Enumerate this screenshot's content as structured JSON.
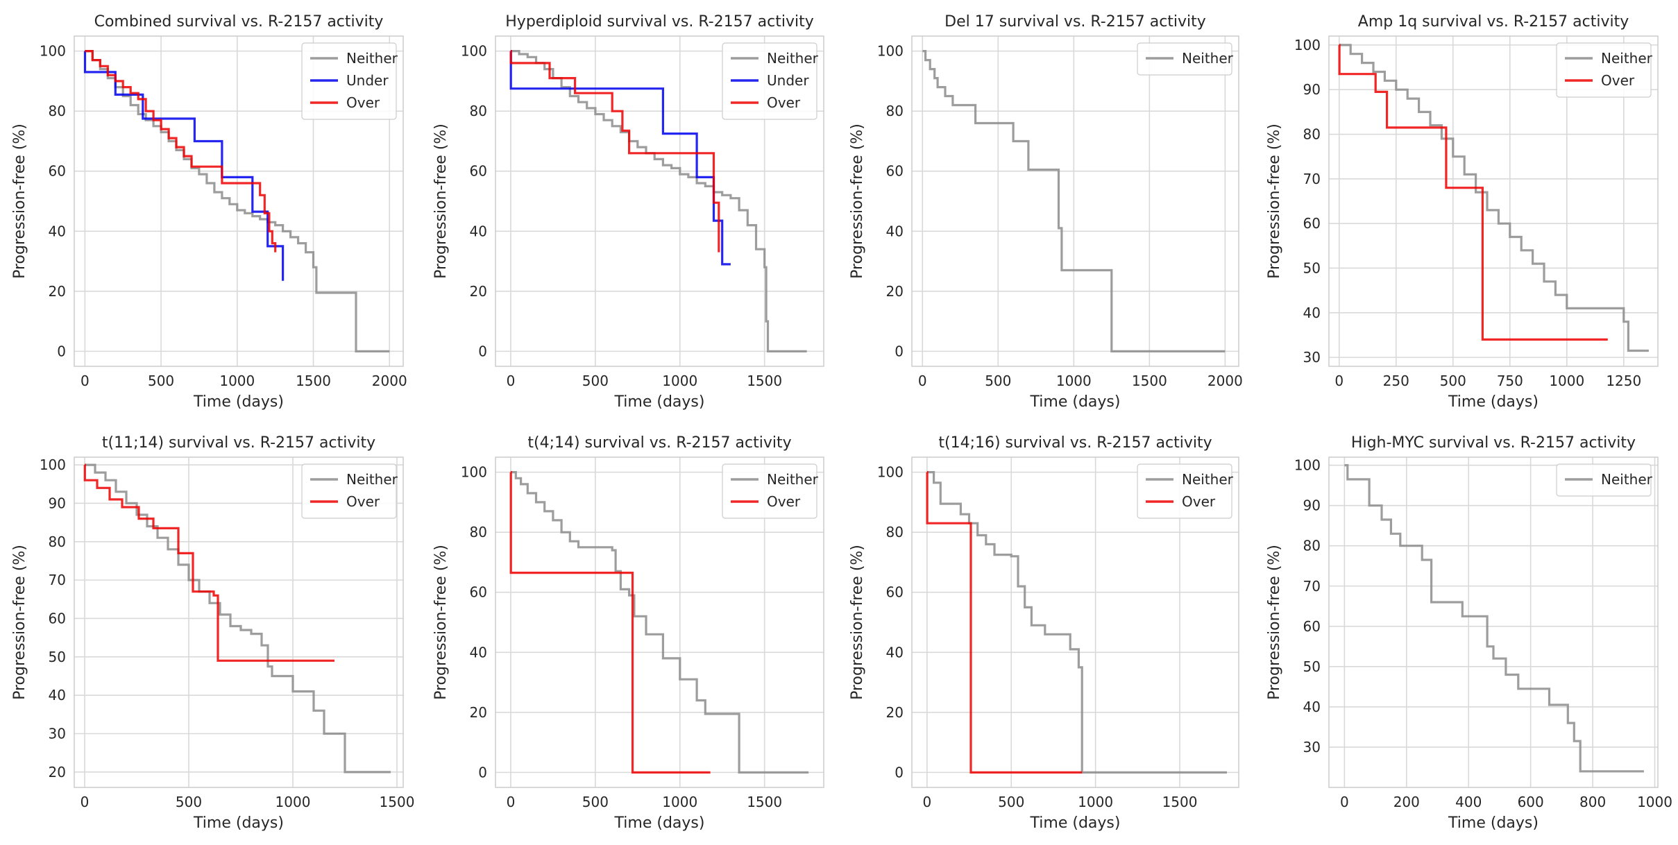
{
  "colors": {
    "Neither": "#8c8c8c",
    "Under": "#0000ee",
    "Over": "#ee0000"
  },
  "chart_data": [
    {
      "type": "line",
      "title": "Combined survival vs. R-2157 activity",
      "xlabel": "Time (days)",
      "ylabel": "Progression-free (%)",
      "xlim": [
        -70,
        2090
      ],
      "ylim": [
        -5,
        105
      ],
      "xticks": [
        0,
        500,
        1000,
        1500,
        2000
      ],
      "yticks": [
        0,
        20,
        40,
        60,
        80,
        100
      ],
      "grid": true,
      "legend_position": "top-right",
      "series": [
        {
          "name": "Neither",
          "x": [
            0,
            50,
            100,
            150,
            200,
            250,
            300,
            350,
            400,
            450,
            500,
            550,
            600,
            650,
            700,
            750,
            800,
            850,
            900,
            950,
            1000,
            1050,
            1100,
            1150,
            1200,
            1250,
            1300,
            1350,
            1400,
            1450,
            1500,
            1520,
            1600,
            1700,
            1760,
            1780,
            2000
          ],
          "y": [
            100,
            97,
            94,
            91,
            88,
            85,
            82,
            79,
            77,
            75,
            73,
            70,
            67,
            64,
            61,
            59,
            56,
            53,
            51,
            49,
            47,
            46,
            45,
            44,
            43,
            42,
            40,
            38,
            36,
            33,
            28,
            19.5,
            19.5,
            19.5,
            19.5,
            0,
            0
          ]
        },
        {
          "name": "Under",
          "x": [
            0,
            0.5,
            200,
            380,
            720,
            900,
            1100,
            1200,
            1300
          ],
          "y": [
            100,
            93,
            85.5,
            77.5,
            70,
            58,
            46.5,
            35,
            23.5
          ]
        },
        {
          "name": "Over",
          "x": [
            0,
            50,
            100,
            150,
            200,
            250,
            300,
            350,
            400,
            450,
            500,
            550,
            600,
            650,
            700,
            900,
            1150,
            1180,
            1210,
            1230,
            1250
          ],
          "y": [
            100,
            97,
            95,
            92,
            90,
            88,
            86,
            84,
            80,
            77,
            74,
            71,
            68,
            65,
            61.5,
            56,
            52,
            46,
            40,
            36,
            33
          ]
        }
      ]
    },
    {
      "type": "line",
      "title": "Hyperdiploid survival vs. R-2157 activity",
      "xlabel": "Time (days)",
      "ylabel": "Progression-free (%)",
      "xlim": [
        -90,
        1850
      ],
      "ylim": [
        -5,
        105
      ],
      "xticks": [
        0,
        500,
        1000,
        1500
      ],
      "yticks": [
        0,
        20,
        40,
        60,
        80,
        100
      ],
      "grid": true,
      "legend_position": "top-right",
      "series": [
        {
          "name": "Neither",
          "x": [
            0,
            50,
            100,
            150,
            200,
            250,
            300,
            350,
            400,
            450,
            500,
            550,
            600,
            650,
            700,
            750,
            800,
            850,
            900,
            950,
            1000,
            1050,
            1100,
            1150,
            1200,
            1250,
            1300,
            1350,
            1400,
            1450,
            1500,
            1510,
            1520,
            1750
          ],
          "y": [
            100,
            99,
            98,
            96,
            94,
            91,
            88,
            85,
            83,
            81,
            79,
            77,
            75,
            73,
            70,
            68,
            66,
            64,
            62,
            61,
            59,
            58,
            56,
            55,
            53,
            52,
            51,
            47,
            42,
            34,
            28,
            10,
            0,
            0
          ]
        },
        {
          "name": "Under",
          "x": [
            0,
            1,
            900,
            1100,
            1200,
            1250,
            1300
          ],
          "y": [
            100,
            87.5,
            72.5,
            58,
            43.5,
            29,
            29
          ]
        },
        {
          "name": "Over",
          "x": [
            0,
            1,
            230,
            380,
            600,
            660,
            700,
            1200,
            1230
          ],
          "y": [
            100,
            96,
            91,
            86,
            80,
            73.5,
            66,
            49.5,
            33
          ]
        }
      ]
    },
    {
      "type": "line",
      "title": "Del 17 survival vs. R-2157 activity",
      "xlabel": "Time (days)",
      "ylabel": "Progression-free (%)",
      "xlim": [
        -70,
        2090
      ],
      "ylim": [
        -5,
        105
      ],
      "xticks": [
        0,
        500,
        1000,
        1500,
        2000
      ],
      "yticks": [
        0,
        20,
        40,
        60,
        80,
        100
      ],
      "grid": true,
      "legend_position": "top-right",
      "series": [
        {
          "name": "Neither",
          "x": [
            0,
            20,
            50,
            80,
            100,
            150,
            200,
            350,
            500,
            600,
            700,
            900,
            920,
            1250,
            2000
          ],
          "y": [
            100,
            97,
            94,
            91,
            88,
            85,
            82,
            76,
            76,
            70,
            60.5,
            41,
            27,
            0,
            0
          ]
        }
      ]
    },
    {
      "type": "line",
      "title": "Amp 1q survival vs. R-2157 activity",
      "xlabel": "Time (days)",
      "ylabel": "Progression-free (%)",
      "xlim": [
        -45,
        1400
      ],
      "ylim": [
        28,
        102
      ],
      "xticks": [
        0,
        250,
        500,
        750,
        1000,
        1250
      ],
      "yticks": [
        30,
        40,
        50,
        60,
        70,
        80,
        90,
        100
      ],
      "grid": true,
      "legend_position": "top-right",
      "series": [
        {
          "name": "Neither",
          "x": [
            0,
            50,
            100,
            150,
            200,
            250,
            300,
            350,
            400,
            450,
            500,
            550,
            600,
            650,
            700,
            750,
            800,
            850,
            900,
            950,
            1000,
            1050,
            1100,
            1150,
            1200,
            1250,
            1270,
            1360
          ],
          "y": [
            100,
            98,
            96,
            94,
            92,
            90,
            88,
            85,
            82,
            79,
            75,
            71,
            67,
            63,
            60,
            57,
            54,
            51,
            47,
            44,
            41,
            41,
            41,
            41,
            41,
            38,
            31.5,
            31.5
          ]
        },
        {
          "name": "Over",
          "x": [
            0,
            1,
            160,
            210,
            470,
            580,
            630,
            1180
          ],
          "y": [
            100,
            93.5,
            89.5,
            81.5,
            68,
            68,
            34,
            34
          ]
        }
      ]
    },
    {
      "type": "line",
      "title": "t(11;14) survival vs. R-2157 activity",
      "xlabel": "Time (days)",
      "ylabel": "Progression-free (%)",
      "xlim": [
        -50,
        1530
      ],
      "ylim": [
        16,
        102
      ],
      "xticks": [
        0,
        500,
        1000,
        1500
      ],
      "yticks": [
        20,
        30,
        40,
        50,
        60,
        70,
        80,
        90,
        100
      ],
      "grid": true,
      "legend_position": "top-right",
      "series": [
        {
          "name": "Neither",
          "x": [
            0,
            50,
            100,
            150,
            200,
            250,
            300,
            350,
            400,
            450,
            500,
            550,
            600,
            650,
            700,
            750,
            800,
            850,
            880,
            900,
            1000,
            1100,
            1150,
            1250,
            1470
          ],
          "y": [
            100,
            98,
            96,
            93,
            90,
            87,
            84,
            81,
            78,
            74,
            70,
            67,
            64,
            61,
            58,
            57,
            56,
            53,
            47.5,
            45,
            41,
            36,
            30,
            20,
            20
          ]
        },
        {
          "name": "Over",
          "x": [
            0,
            1,
            60,
            120,
            180,
            260,
            330,
            450,
            520,
            620,
            640,
            1200
          ],
          "y": [
            100,
            96,
            94,
            91,
            89,
            86,
            83.5,
            77,
            67,
            66,
            49,
            49
          ]
        }
      ]
    },
    {
      "type": "line",
      "title": "t(4;14) survival vs. R-2157 activity",
      "xlabel": "Time (days)",
      "ylabel": "Progression-free (%)",
      "xlim": [
        -90,
        1850
      ],
      "ylim": [
        -5,
        105
      ],
      "xticks": [
        0,
        500,
        1000,
        1500
      ],
      "yticks": [
        0,
        20,
        40,
        60,
        80,
        100
      ],
      "grid": true,
      "legend_position": "top-right",
      "series": [
        {
          "name": "Neither",
          "x": [
            0,
            30,
            60,
            100,
            150,
            200,
            250,
            300,
            350,
            400,
            450,
            500,
            550,
            600,
            620,
            650,
            700,
            730,
            800,
            900,
            1000,
            1100,
            1150,
            1350,
            1760
          ],
          "y": [
            100,
            98,
            96,
            93,
            90,
            87,
            84,
            80,
            77,
            75,
            75,
            75,
            75,
            74,
            67,
            61,
            59,
            52,
            46,
            38,
            31,
            24,
            19.5,
            0,
            0
          ]
        },
        {
          "name": "Over",
          "x": [
            0,
            1,
            710,
            720,
            1180
          ],
          "y": [
            100,
            66.5,
            66.5,
            0,
            0
          ]
        }
      ]
    },
    {
      "type": "line",
      "title": "t(14;16) survival vs. R-2157 activity",
      "xlabel": "Time (days)",
      "ylabel": "Progression-free (%)",
      "xlim": [
        -90,
        1850
      ],
      "ylim": [
        -5,
        105
      ],
      "xticks": [
        0,
        500,
        1000,
        1500
      ],
      "yticks": [
        0,
        20,
        40,
        60,
        80,
        100
      ],
      "grid": true,
      "legend_position": "top-right",
      "series": [
        {
          "name": "Neither",
          "x": [
            0,
            40,
            80,
            200,
            250,
            300,
            350,
            400,
            500,
            540,
            580,
            620,
            700,
            850,
            900,
            920,
            1780
          ],
          "y": [
            100,
            96.5,
            89.5,
            86,
            83,
            79,
            76,
            72.5,
            72,
            62,
            55,
            49,
            46,
            41,
            35,
            0,
            0
          ]
        },
        {
          "name": "Over",
          "x": [
            0,
            1,
            250,
            260,
            920
          ],
          "y": [
            100,
            83,
            83,
            0,
            0
          ]
        }
      ]
    },
    {
      "type": "line",
      "title": "High-MYC survival vs. R-2157 activity",
      "xlabel": "Time (days)",
      "ylabel": "Progression-free (%)",
      "xlim": [
        -50,
        1010
      ],
      "ylim": [
        20,
        102
      ],
      "xticks": [
        0,
        200,
        400,
        600,
        800,
        1000
      ],
      "yticks": [
        30,
        40,
        50,
        60,
        70,
        80,
        90,
        100
      ],
      "grid": true,
      "legend_position": "top-right",
      "series": [
        {
          "name": "Neither",
          "x": [
            0,
            10,
            80,
            120,
            150,
            180,
            250,
            280,
            380,
            460,
            480,
            520,
            560,
            660,
            720,
            740,
            760,
            965
          ],
          "y": [
            100,
            96.5,
            90,
            86.5,
            83,
            80,
            76.5,
            66,
            62.5,
            55,
            52,
            48,
            44.5,
            40.5,
            36,
            31.5,
            24,
            24
          ]
        }
      ]
    }
  ]
}
